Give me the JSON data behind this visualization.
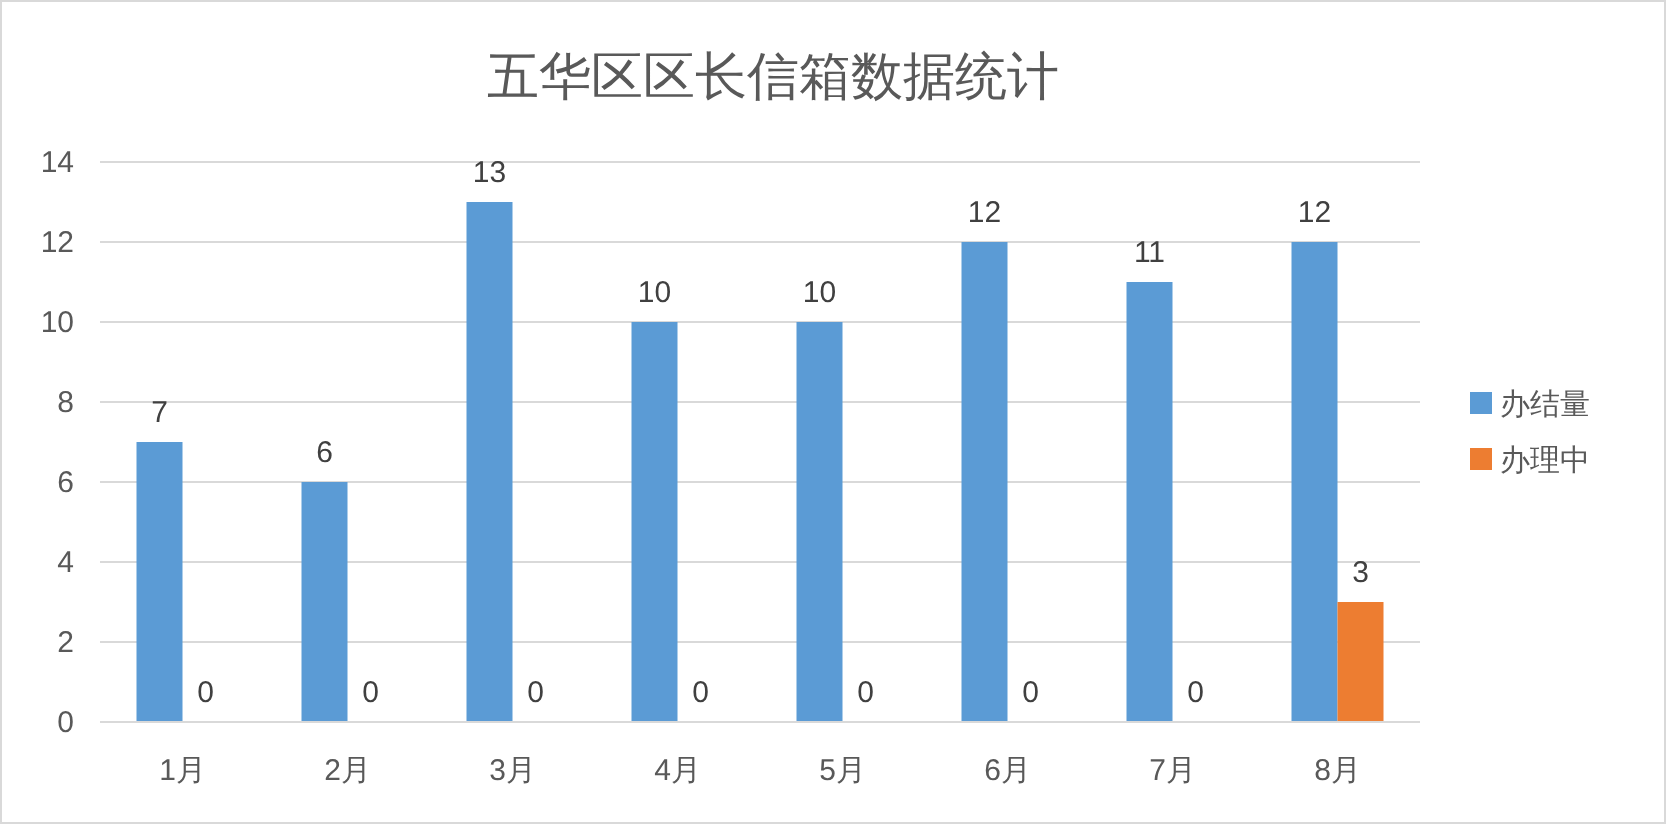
{
  "chart_data": {
    "type": "bar",
    "title": "五华区区长信箱数据统计",
    "categories": [
      "1月",
      "2月",
      "3月",
      "4月",
      "5月",
      "6月",
      "7月",
      "8月"
    ],
    "series": [
      {
        "name": "办结量",
        "color": "#5b9bd5",
        "values": [
          7,
          6,
          13,
          10,
          10,
          12,
          11,
          12
        ]
      },
      {
        "name": "办理中",
        "color": "#ed7d31",
        "values": [
          0,
          0,
          0,
          0,
          0,
          0,
          0,
          3
        ]
      }
    ],
    "ylim": [
      0,
      14
    ],
    "yticks": [
      0,
      2,
      4,
      6,
      8,
      10,
      12,
      14
    ],
    "grid": "y",
    "legend": "right",
    "data_labels": true
  }
}
